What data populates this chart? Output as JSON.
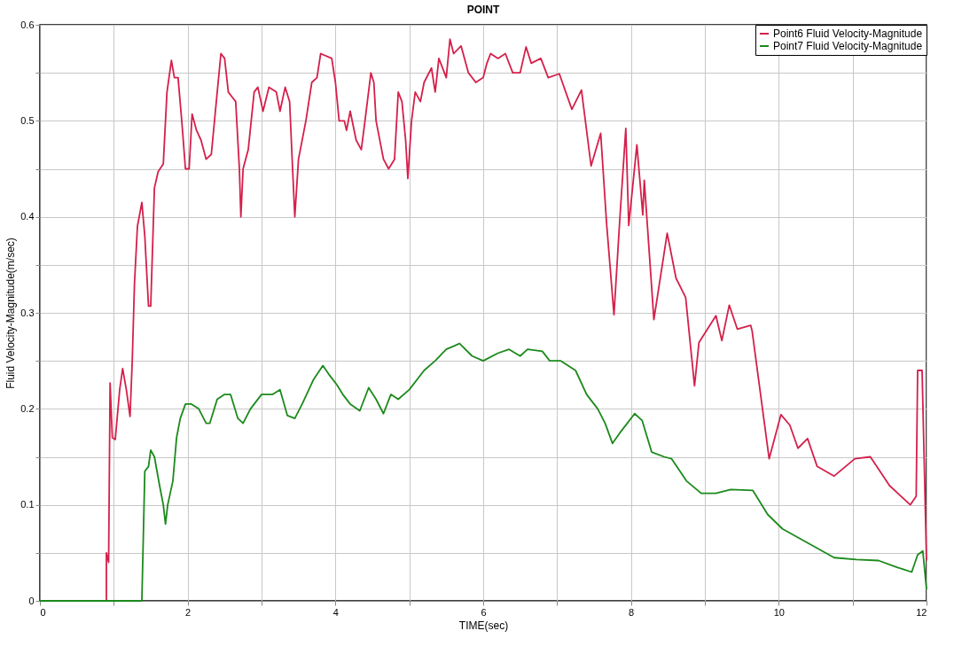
{
  "chart_data": {
    "type": "line",
    "title": "POINT",
    "xlabel": "TIME(sec)",
    "ylabel": "Fluid Velocity-Magnitude(m/sec)",
    "xlim": [
      0,
      12
    ],
    "ylim": [
      0,
      0.6
    ],
    "xticks": [
      0,
      {
        "value": 1,
        "label": null
      },
      2,
      {
        "value": 3,
        "label": null
      },
      4,
      {
        "value": 5,
        "label": null
      },
      6,
      {
        "value": 7,
        "label": null
      },
      8,
      {
        "value": 9,
        "label": null
      },
      10,
      {
        "value": 11,
        "label": null
      },
      12
    ],
    "yticks": [
      0,
      {
        "value": 0.05,
        "label": null
      },
      0.1,
      {
        "value": 0.15,
        "label": null
      },
      0.2,
      {
        "value": 0.25,
        "label": null
      },
      0.3,
      {
        "value": 0.35,
        "label": null
      },
      0.4,
      {
        "value": 0.45,
        "label": null
      },
      0.5,
      {
        "value": 0.55,
        "label": null
      },
      0.6
    ],
    "grid": true,
    "legend": "top right",
    "line_style": "solid",
    "marker": "none",
    "series": [
      {
        "name": "Point6 Fluid Velocity-Magnitude",
        "color": "#d4204a",
        "x": [
          0,
          0.9,
          0.9,
          0.93,
          0.95,
          0.98,
          1.02,
          1.08,
          1.12,
          1.17,
          1.22,
          1.25,
          1.28,
          1.32,
          1.38,
          1.42,
          1.47,
          1.5,
          1.55,
          1.6,
          1.67,
          1.72,
          1.78,
          1.82,
          1.87,
          1.92,
          1.97,
          2.02,
          2.06,
          2.12,
          2.18,
          2.25,
          2.32,
          2.4,
          2.45,
          2.5,
          2.55,
          2.6,
          2.65,
          2.7,
          2.72,
          2.75,
          2.82,
          2.9,
          2.95,
          3.02,
          3.1,
          3.2,
          3.25,
          3.32,
          3.38,
          3.42,
          3.45,
          3.5,
          3.6,
          3.68,
          3.75,
          3.8,
          3.95,
          4.0,
          4.05,
          4.12,
          4.15,
          4.2,
          4.28,
          4.35,
          4.4,
          4.48,
          4.52,
          4.55,
          4.65,
          4.72,
          4.8,
          4.85,
          4.9,
          4.95,
          4.98,
          5.03,
          5.08,
          5.15,
          5.2,
          5.3,
          5.35,
          5.4,
          5.5,
          5.55,
          5.6,
          5.7,
          5.8,
          5.9,
          6.0,
          6.05,
          6.1,
          6.2,
          6.3,
          6.4,
          6.5,
          6.58,
          6.65,
          6.78,
          6.88,
          7.03,
          7.2,
          7.33,
          7.46,
          7.59,
          7.67,
          7.77,
          7.85,
          7.93,
          7.97,
          8.08,
          8.16,
          8.18,
          8.31,
          8.49,
          8.61,
          8.74,
          8.86,
          8.92,
          9.15,
          9.23,
          9.33,
          9.44,
          9.62,
          9.64,
          9.87,
          10.03,
          10.15,
          10.26,
          10.39,
          10.52,
          10.75,
          11.03,
          11.24,
          11.5,
          11.78,
          11.86,
          11.88,
          11.94,
          12
        ],
        "values": [
          0,
          0,
          0.05,
          0.04,
          0.227,
          0.17,
          0.168,
          0.22,
          0.242,
          0.22,
          0.192,
          0.25,
          0.33,
          0.39,
          0.415,
          0.38,
          0.307,
          0.307,
          0.43,
          0.447,
          0.455,
          0.53,
          0.563,
          0.545,
          0.545,
          0.5,
          0.45,
          0.45,
          0.507,
          0.49,
          0.48,
          0.46,
          0.465,
          0.53,
          0.57,
          0.565,
          0.53,
          0.525,
          0.52,
          0.45,
          0.4,
          0.45,
          0.47,
          0.53,
          0.535,
          0.51,
          0.535,
          0.53,
          0.51,
          0.535,
          0.52,
          0.45,
          0.4,
          0.46,
          0.5,
          0.54,
          0.545,
          0.57,
          0.565,
          0.54,
          0.5,
          0.5,
          0.49,
          0.51,
          0.48,
          0.47,
          0.5,
          0.55,
          0.54,
          0.5,
          0.46,
          0.45,
          0.46,
          0.53,
          0.52,
          0.48,
          0.44,
          0.5,
          0.53,
          0.52,
          0.54,
          0.555,
          0.53,
          0.565,
          0.545,
          0.585,
          0.57,
          0.578,
          0.55,
          0.54,
          0.545,
          0.56,
          0.57,
          0.565,
          0.57,
          0.55,
          0.55,
          0.577,
          0.56,
          0.565,
          0.545,
          0.549,
          0.512,
          0.532,
          0.453,
          0.487,
          0.393,
          0.298,
          0.399,
          0.492,
          0.391,
          0.475,
          0.402,
          0.438,
          0.293,
          0.383,
          0.336,
          0.316,
          0.224,
          0.269,
          0.297,
          0.271,
          0.308,
          0.283,
          0.287,
          0.281,
          0.148,
          0.194,
          0.183,
          0.159,
          0.169,
          0.14,
          0.13,
          0.148,
          0.15,
          0.12,
          0.1,
          0.109,
          0.24,
          0.24,
          0.042
        ]
      },
      {
        "name": "Point7 Fluid Velocity-Magnitude",
        "color": "#1b8a1b",
        "x": [
          0,
          1.38,
          1.42,
          1.47,
          1.5,
          1.55,
          1.62,
          1.67,
          1.7,
          1.73,
          1.8,
          1.85,
          1.9,
          1.97,
          2.05,
          2.15,
          2.25,
          2.3,
          2.4,
          2.5,
          2.58,
          2.68,
          2.75,
          2.85,
          3.0,
          3.15,
          3.25,
          3.35,
          3.45,
          3.55,
          3.7,
          3.83,
          3.92,
          4.02,
          4.1,
          4.2,
          4.33,
          4.45,
          4.55,
          4.65,
          4.75,
          4.85,
          5.0,
          5.2,
          5.35,
          5.5,
          5.68,
          5.85,
          6.0,
          6.2,
          6.35,
          6.5,
          6.6,
          6.8,
          6.9,
          7.05,
          7.25,
          7.4,
          7.55,
          7.65,
          7.75,
          7.85,
          7.95,
          8.05,
          8.15,
          8.28,
          8.45,
          8.55,
          8.75,
          8.95,
          9.15,
          9.35,
          9.65,
          9.85,
          10.05,
          10.4,
          10.75,
          11.05,
          11.35,
          11.6,
          11.8,
          11.88,
          11.95,
          12
        ],
        "values": [
          0,
          0,
          0.135,
          0.14,
          0.157,
          0.15,
          0.12,
          0.1,
          0.08,
          0.1,
          0.125,
          0.17,
          0.19,
          0.205,
          0.205,
          0.2,
          0.185,
          0.185,
          0.21,
          0.215,
          0.215,
          0.19,
          0.185,
          0.2,
          0.215,
          0.215,
          0.22,
          0.193,
          0.19,
          0.205,
          0.23,
          0.245,
          0.235,
          0.225,
          0.215,
          0.205,
          0.198,
          0.222,
          0.21,
          0.195,
          0.215,
          0.21,
          0.22,
          0.24,
          0.25,
          0.262,
          0.268,
          0.255,
          0.25,
          0.258,
          0.262,
          0.255,
          0.262,
          0.26,
          0.25,
          0.25,
          0.24,
          0.215,
          0.2,
          0.185,
          0.164,
          0.175,
          0.185,
          0.195,
          0.188,
          0.155,
          0.15,
          0.148,
          0.125,
          0.112,
          0.112,
          0.116,
          0.115,
          0.09,
          0.075,
          0.06,
          0.045,
          0.043,
          0.042,
          0.035,
          0.03,
          0.048,
          0.052,
          0.012
        ]
      }
    ]
  }
}
